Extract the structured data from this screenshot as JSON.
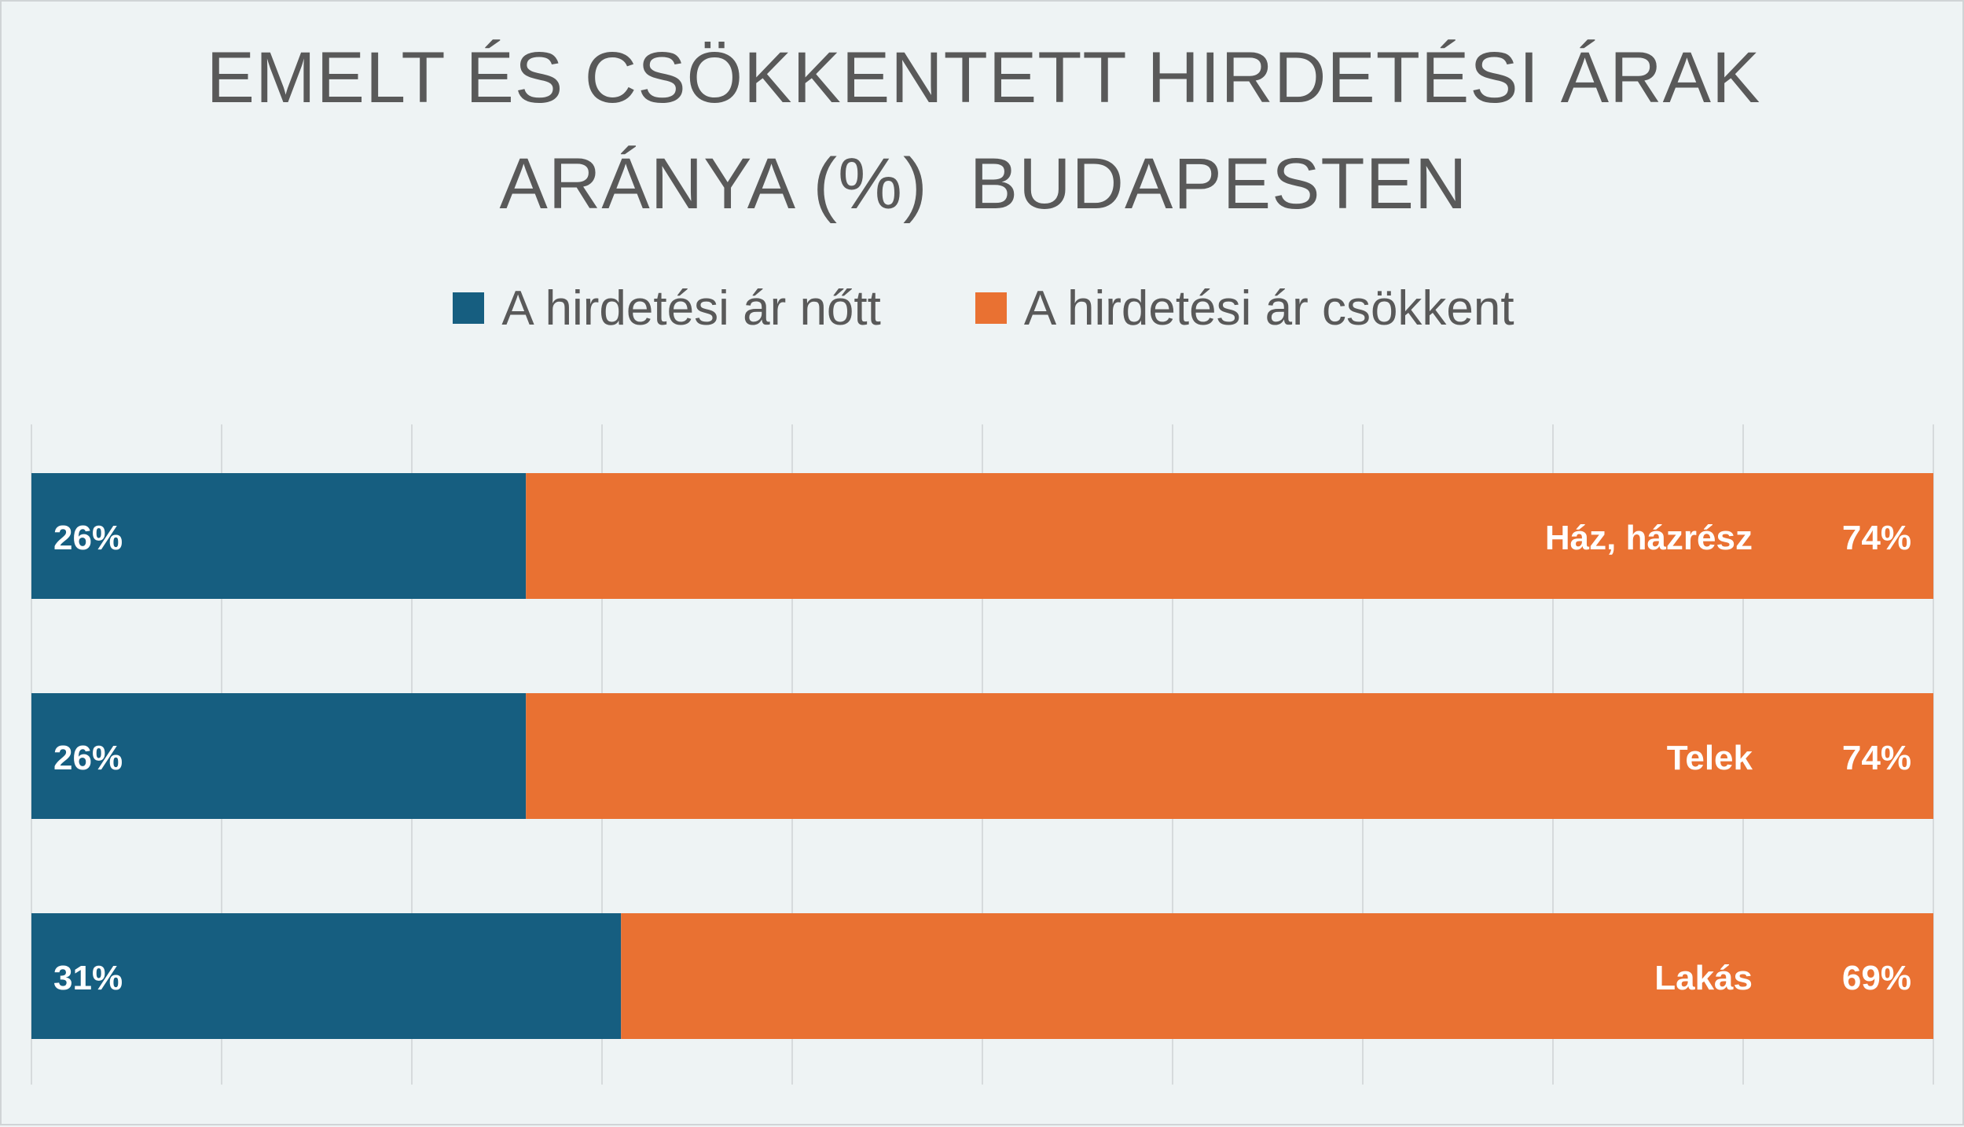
{
  "chart_data": {
    "type": "bar",
    "orientation": "horizontal",
    "stacked": "percent",
    "title_lines": [
      "EMELT ÉS CSÖKKENTETT HIRDETÉSI ÁRAK",
      "ARÁNYA (%)  BUDAPESTEN"
    ],
    "categories": [
      "Ház, házrész",
      "Telek",
      "Lakás"
    ],
    "series": [
      {
        "name": "A hirdetési ár nőtt",
        "values": [
          26,
          26,
          31
        ],
        "labels": [
          "26%",
          "26%",
          "31%"
        ],
        "color": "#165e80"
      },
      {
        "name": "A hirdetési ár csökkent",
        "values": [
          74,
          74,
          69
        ],
        "labels": [
          "74%",
          "74%",
          "69%"
        ],
        "color": "#e97132"
      }
    ],
    "xlim": [
      0,
      100
    ],
    "grid": true,
    "legend_position": "top"
  }
}
